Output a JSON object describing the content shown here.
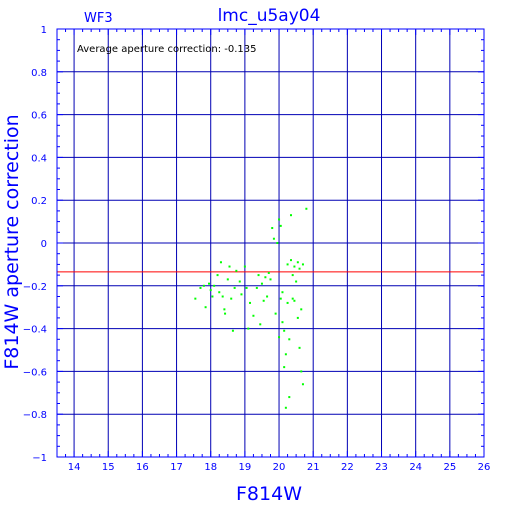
{
  "chart_data": {
    "type": "scatter",
    "title": "lmc_u5ay04",
    "panel_label": "WF3",
    "annotation": "Average aperture correction: -0.135",
    "xlabel": "F814W",
    "ylabel": "F814W aperture correction",
    "xlim": [
      13.5,
      26
    ],
    "ylim": [
      -1,
      1
    ],
    "x_ticks": [
      14,
      15,
      16,
      17,
      18,
      19,
      20,
      21,
      22,
      23,
      24,
      25,
      26
    ],
    "y_ticks": [
      -1,
      -0.8,
      -0.6,
      -0.4,
      -0.2,
      0,
      0.2,
      0.4,
      0.6,
      0.8,
      1
    ],
    "y_tick_labels": [
      "−1",
      "−0.8",
      "−0.6",
      "−0.4",
      "−0.2",
      "0",
      "0.2",
      "0.4",
      "0.6",
      "0.8",
      "1"
    ],
    "grid": true,
    "reference_line": {
      "y": -0.135,
      "color": "#ff0000"
    },
    "colors": {
      "axes": "#0000ff",
      "grid": "#0000b4",
      "points": "#00ff00",
      "text": "#0000ff"
    },
    "series": [
      {
        "points": [
          {
            "x": 17.55,
            "y": -0.26
          },
          {
            "x": 17.7,
            "y": -0.21
          },
          {
            "x": 17.8,
            "y": -0.2
          },
          {
            "x": 17.85,
            "y": -0.3
          },
          {
            "x": 17.95,
            "y": -0.19
          },
          {
            "x": 18.0,
            "y": -0.22
          },
          {
            "x": 18.05,
            "y": -0.25
          },
          {
            "x": 18.1,
            "y": -0.2
          },
          {
            "x": 18.2,
            "y": -0.15
          },
          {
            "x": 18.25,
            "y": -0.23
          },
          {
            "x": 18.3,
            "y": -0.09
          },
          {
            "x": 18.35,
            "y": -0.25
          },
          {
            "x": 18.4,
            "y": -0.31
          },
          {
            "x": 18.42,
            "y": -0.33
          },
          {
            "x": 18.5,
            "y": -0.17
          },
          {
            "x": 18.55,
            "y": -0.11
          },
          {
            "x": 18.6,
            "y": -0.26
          },
          {
            "x": 18.65,
            "y": -0.41
          },
          {
            "x": 18.7,
            "y": -0.21
          },
          {
            "x": 18.75,
            "y": -0.13
          },
          {
            "x": 18.85,
            "y": -0.18
          },
          {
            "x": 18.9,
            "y": -0.24
          },
          {
            "x": 19.0,
            "y": -0.11
          },
          {
            "x": 19.05,
            "y": -0.21
          },
          {
            "x": 19.1,
            "y": -0.4
          },
          {
            "x": 19.15,
            "y": -0.28
          },
          {
            "x": 19.25,
            "y": -0.34
          },
          {
            "x": 19.35,
            "y": -0.21
          },
          {
            "x": 19.4,
            "y": -0.15
          },
          {
            "x": 19.45,
            "y": -0.38
          },
          {
            "x": 19.5,
            "y": -0.19
          },
          {
            "x": 19.55,
            "y": -0.27
          },
          {
            "x": 19.6,
            "y": -0.16
          },
          {
            "x": 19.65,
            "y": -0.25
          },
          {
            "x": 19.7,
            "y": -0.14
          },
          {
            "x": 19.75,
            "y": -0.17
          },
          {
            "x": 19.8,
            "y": 0.07
          },
          {
            "x": 19.85,
            "y": 0.02
          },
          {
            "x": 19.9,
            "y": -0.33
          },
          {
            "x": 19.95,
            "y": 0.0
          },
          {
            "x": 20.0,
            "y": 0.11
          },
          {
            "x": 20.0,
            "y": -0.44
          },
          {
            "x": 20.05,
            "y": -0.26
          },
          {
            "x": 20.05,
            "y": 0.08
          },
          {
            "x": 20.1,
            "y": -0.37
          },
          {
            "x": 20.1,
            "y": -0.23
          },
          {
            "x": 20.15,
            "y": -0.41
          },
          {
            "x": 20.15,
            "y": -0.58
          },
          {
            "x": 20.2,
            "y": -0.52
          },
          {
            "x": 20.2,
            "y": -0.77
          },
          {
            "x": 20.25,
            "y": -0.1
          },
          {
            "x": 20.25,
            "y": -0.28
          },
          {
            "x": 20.3,
            "y": -0.45
          },
          {
            "x": 20.3,
            "y": -0.72
          },
          {
            "x": 20.35,
            "y": 0.13
          },
          {
            "x": 20.35,
            "y": -0.08
          },
          {
            "x": 20.4,
            "y": -0.15
          },
          {
            "x": 20.4,
            "y": -0.26
          },
          {
            "x": 20.45,
            "y": -0.11
          },
          {
            "x": 20.45,
            "y": -0.27
          },
          {
            "x": 20.5,
            "y": -0.18
          },
          {
            "x": 20.55,
            "y": -0.09
          },
          {
            "x": 20.55,
            "y": -0.35
          },
          {
            "x": 20.6,
            "y": -0.12
          },
          {
            "x": 20.6,
            "y": -0.49
          },
          {
            "x": 20.65,
            "y": -0.31
          },
          {
            "x": 20.65,
            "y": -0.6
          },
          {
            "x": 20.7,
            "y": -0.1
          },
          {
            "x": 20.7,
            "y": -0.66
          },
          {
            "x": 20.8,
            "y": 0.16
          }
        ]
      }
    ]
  }
}
